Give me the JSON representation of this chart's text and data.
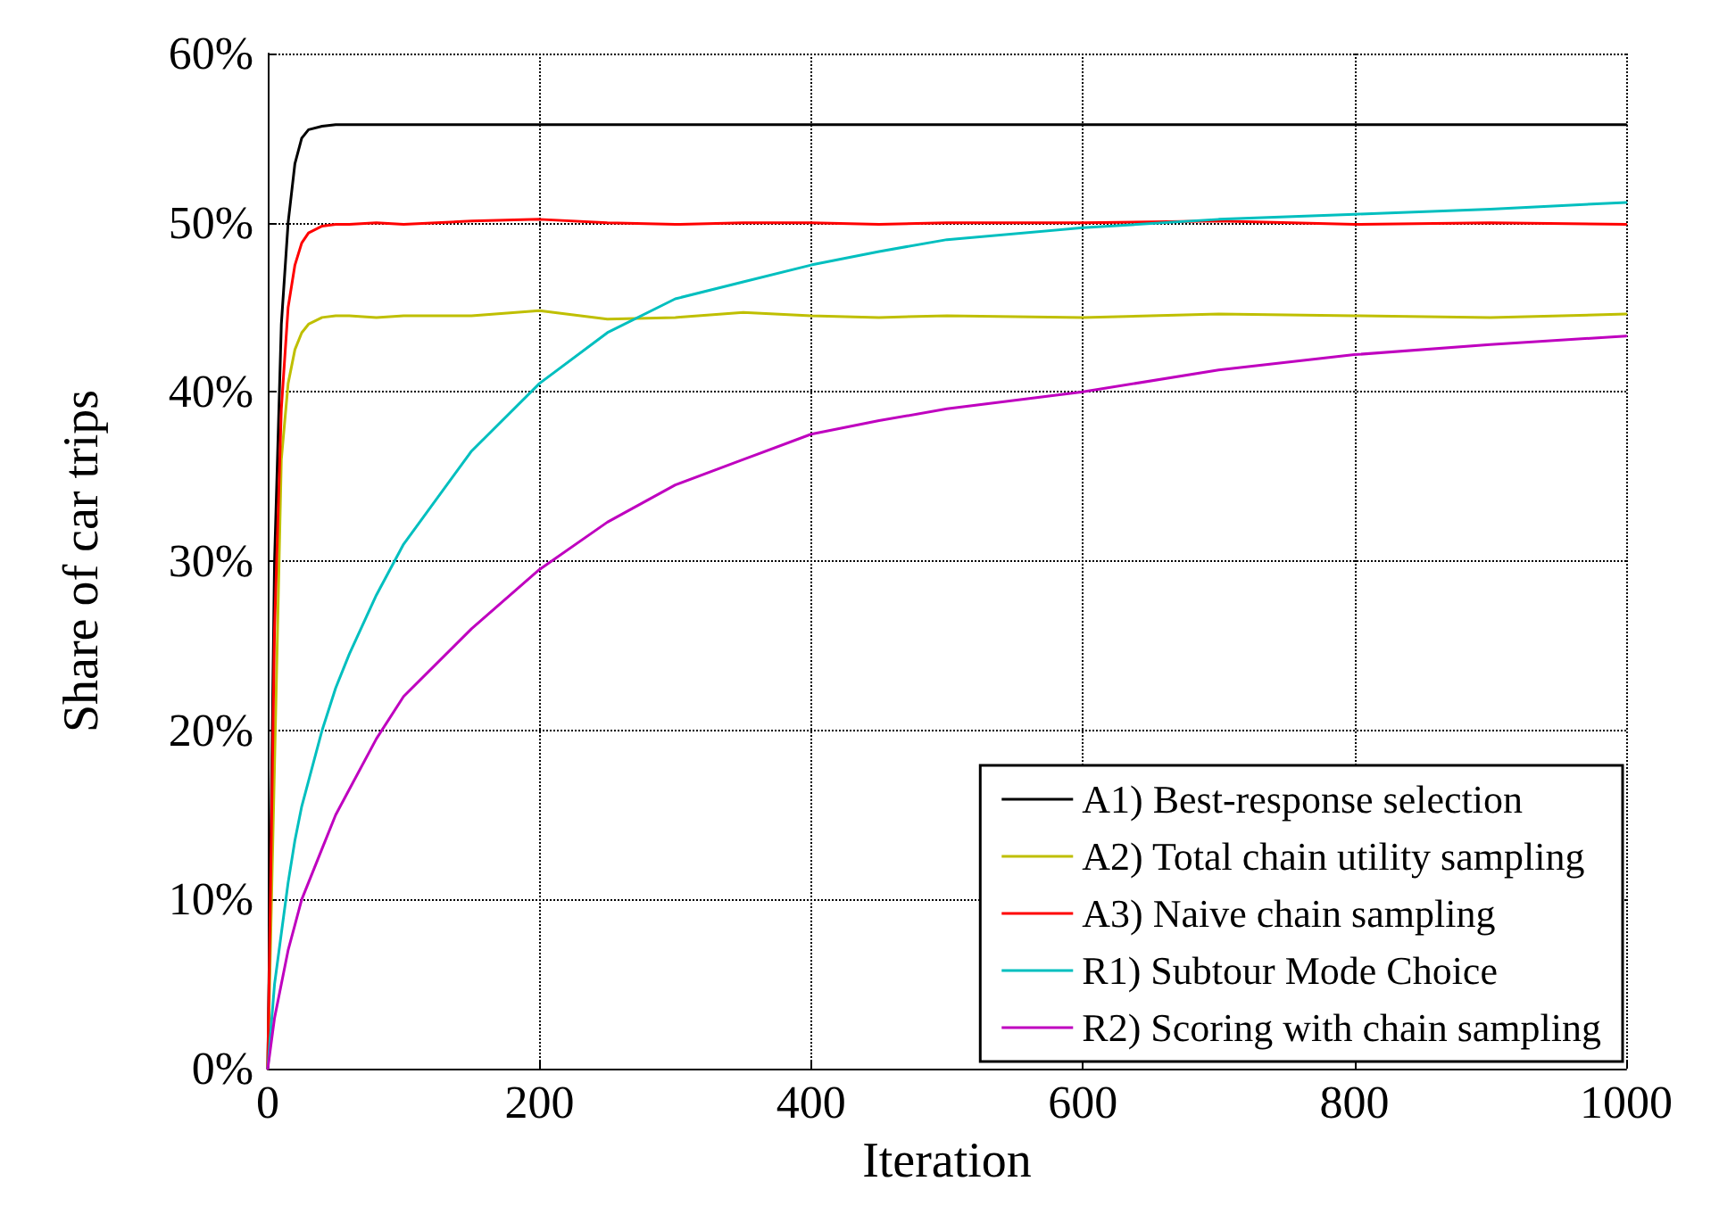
{
  "chart_data": {
    "type": "line",
    "xlabel": "Iteration",
    "ylabel": "Share of car trips",
    "x": [
      0,
      5,
      10,
      15,
      20,
      25,
      30,
      40,
      50,
      60,
      80,
      100,
      150,
      200,
      250,
      300,
      350,
      400,
      450,
      500,
      600,
      700,
      800,
      900,
      1000
    ],
    "series": [
      {
        "name": "A1) Best-response selection",
        "color": "#000000",
        "values": [
          0,
          30,
          44,
          50,
          53.5,
          55,
          55.5,
          55.7,
          55.8,
          55.8,
          55.8,
          55.8,
          55.8,
          55.8,
          55.8,
          55.8,
          55.8,
          55.8,
          55.8,
          55.8,
          55.8,
          55.8,
          55.8,
          55.8,
          55.8
        ]
      },
      {
        "name": "A2) Total chain utility sampling",
        "color": "#bfbf00",
        "values": [
          0,
          null,
          36,
          40.5,
          42.5,
          43.5,
          44,
          44.4,
          44.5,
          44.5,
          44.4,
          44.5,
          44.5,
          44.8,
          44.3,
          44.4,
          44.7,
          44.5,
          44.4,
          44.5,
          44.4,
          44.6,
          44.5,
          44.4,
          44.6
        ]
      },
      {
        "name": "A3) Naive chain sampling",
        "color": "#ff0000",
        "values": [
          0,
          26,
          39,
          45,
          47.5,
          48.8,
          49.4,
          49.8,
          49.9,
          49.9,
          50,
          49.9,
          50.1,
          50.2,
          50,
          49.9,
          50,
          50,
          49.9,
          50,
          50,
          50.1,
          49.9,
          50,
          49.9
        ]
      },
      {
        "name": "R1) Subtour Mode Choice",
        "color": "#00bfbf",
        "values": [
          0,
          5,
          8,
          11,
          13.5,
          15.5,
          17,
          20,
          22.5,
          24.5,
          28,
          31,
          36.5,
          40.5,
          43.5,
          45.5,
          46.5,
          47.5,
          48.3,
          49,
          49.7,
          50.2,
          50.5,
          50.8,
          51.2
        ]
      },
      {
        "name": "R2) Scoring with chain sampling",
        "color": "#bf00bf",
        "values": [
          0,
          3,
          5,
          7,
          8.5,
          10,
          11,
          13,
          15,
          16.5,
          19.5,
          22,
          26,
          29.5,
          32.3,
          34.5,
          36,
          37.5,
          38.3,
          39,
          40,
          41.3,
          42.2,
          42.8,
          43.3
        ]
      }
    ],
    "xlim": [
      0,
      1000
    ],
    "xticks": [
      0,
      200,
      400,
      600,
      800,
      1000
    ],
    "ylim": [
      0,
      60
    ],
    "yticks": [
      {
        "value": 0,
        "label": "0%"
      },
      {
        "value": 10,
        "label": "10%"
      },
      {
        "value": 20,
        "label": "20%"
      },
      {
        "value": 30,
        "label": "30%"
      },
      {
        "value": 40,
        "label": "40%"
      },
      {
        "value": 50,
        "label": "50%"
      },
      {
        "value": 60,
        "label": "60%"
      }
    ],
    "grid": true,
    "legend": "bottom right",
    "marker": "none",
    "line_style": "solid"
  }
}
